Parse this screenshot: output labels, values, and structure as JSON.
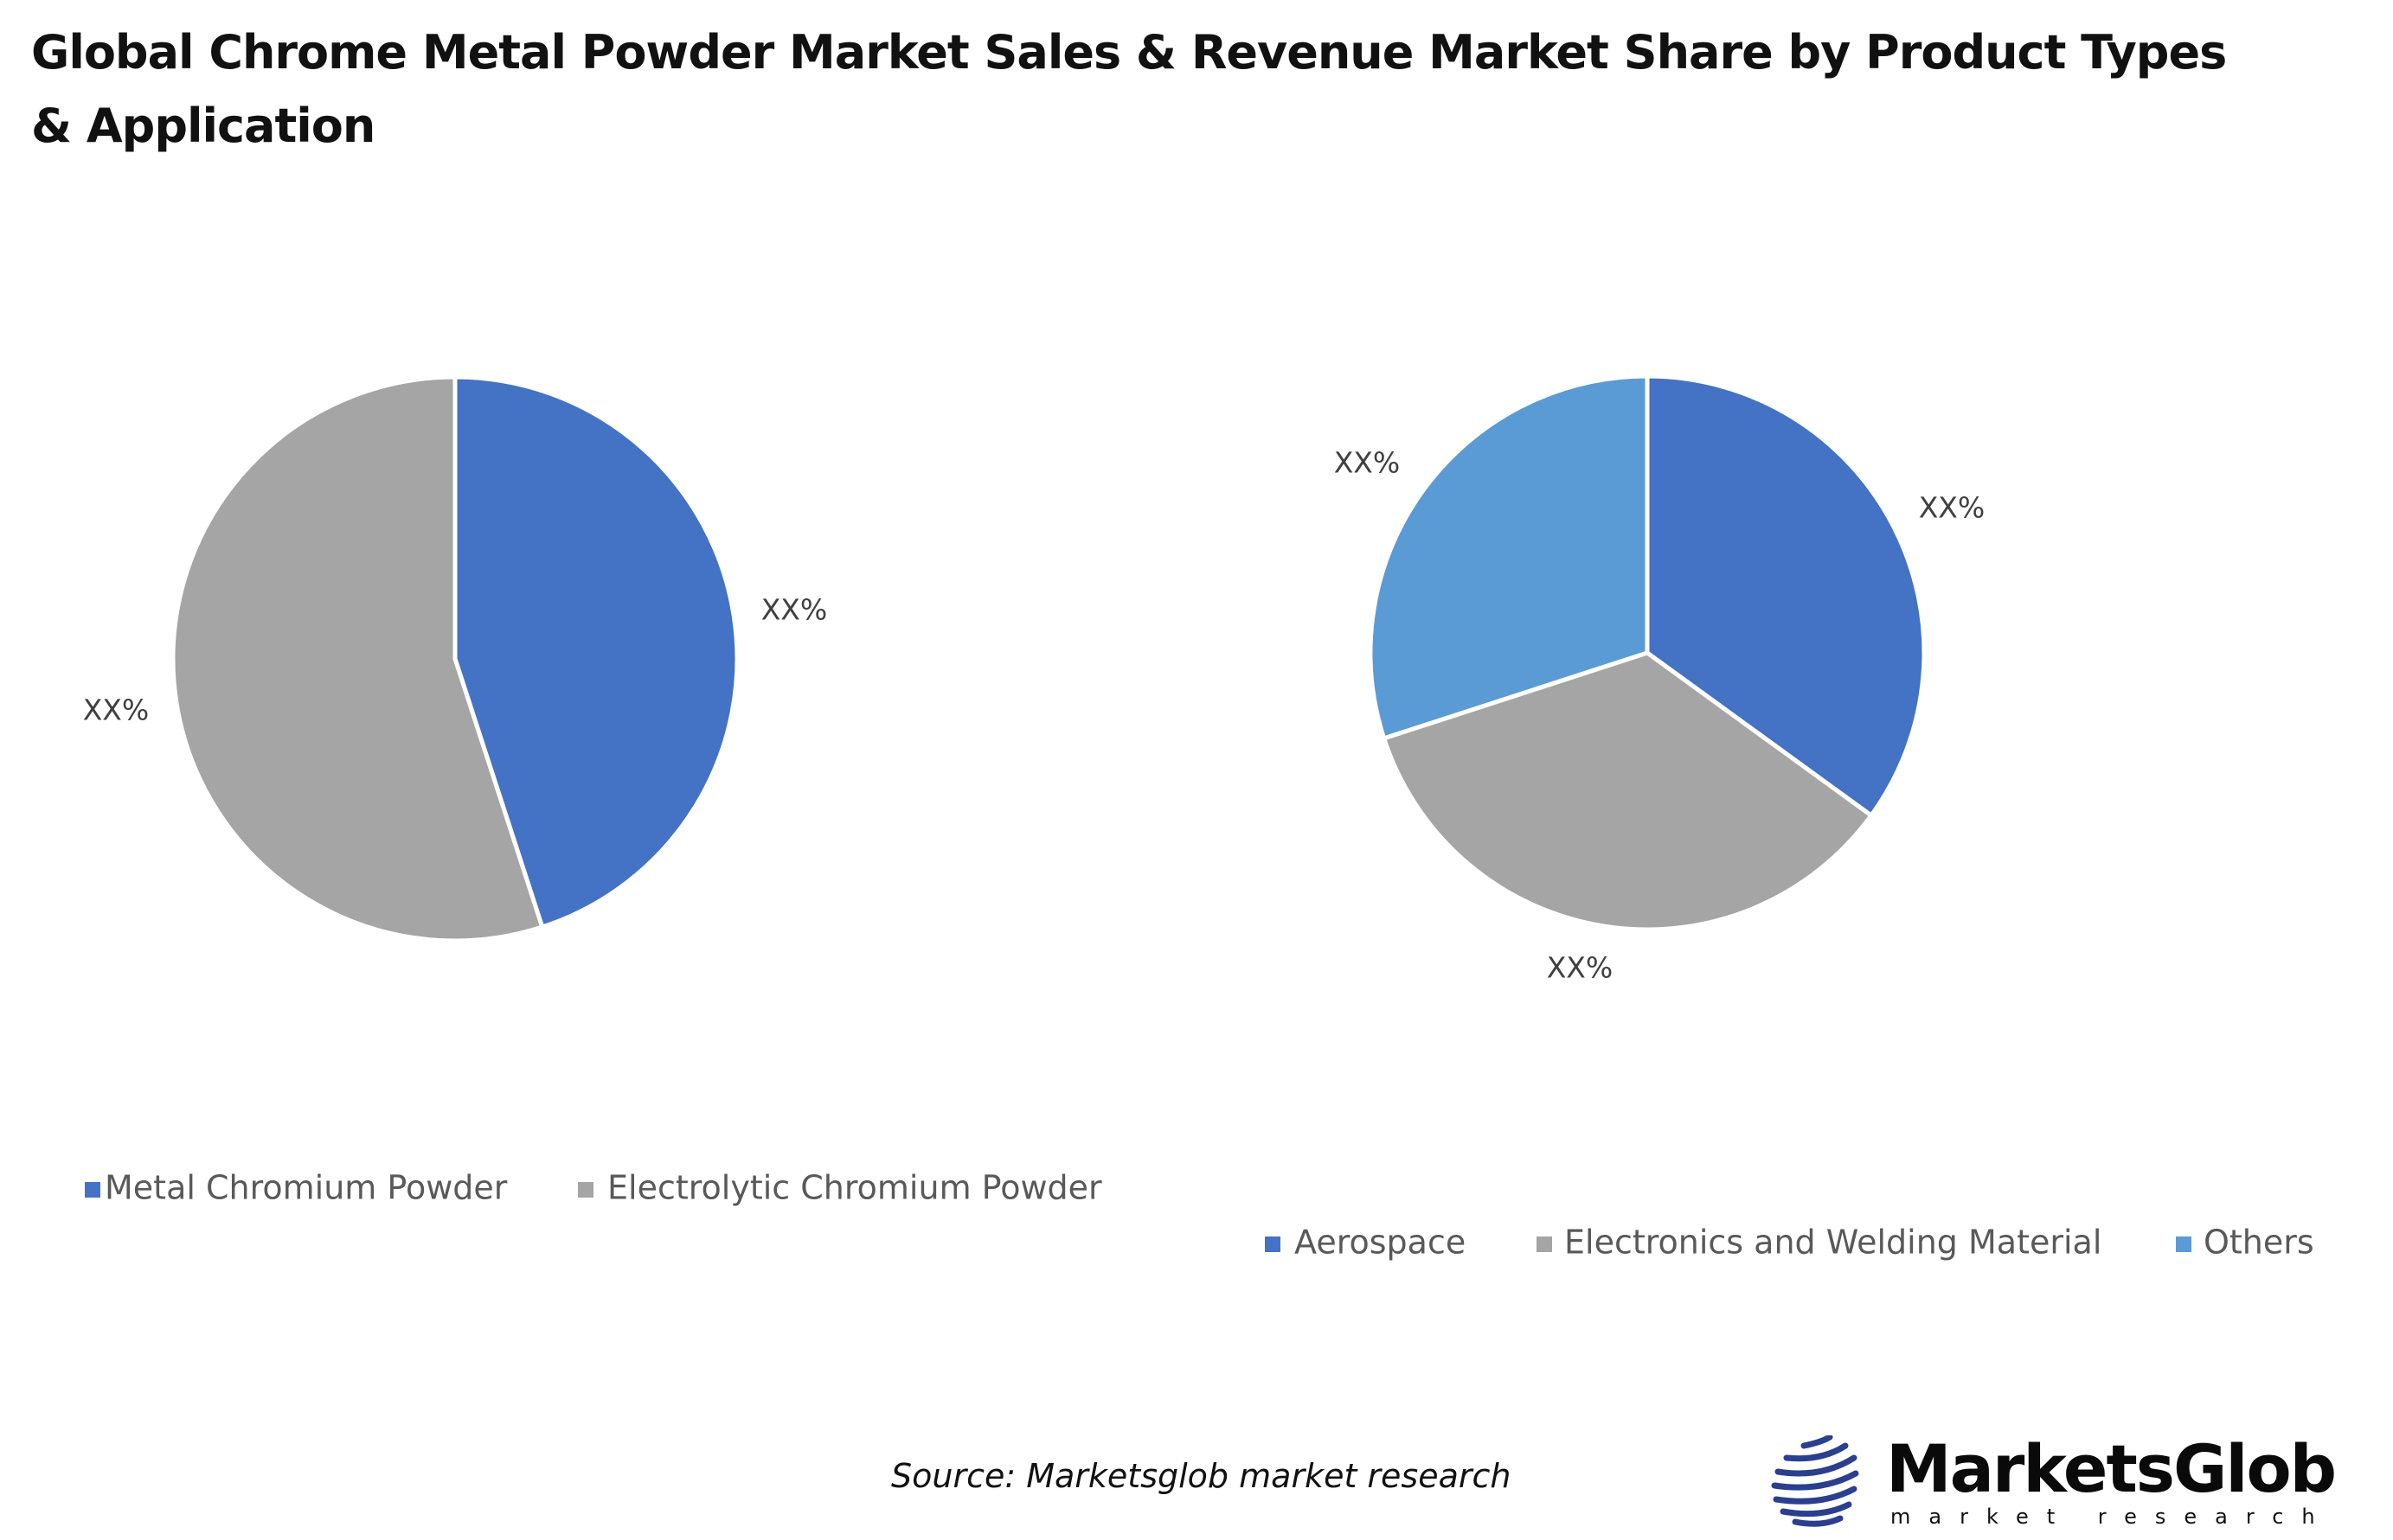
{
  "title": "Global Chrome Metal Powder Market Sales & Revenue Market Share by Product Types & Application",
  "chart_data": [
    {
      "type": "pie",
      "categories": [
        "Metal Chromium Powder",
        "Electrolytic Chromium Powder"
      ],
      "values": [
        45,
        55
      ],
      "data_labels": [
        "XX%",
        "XX%"
      ],
      "colors": [
        "#4472C4",
        "#A5A5A5"
      ],
      "legend": "bottom"
    },
    {
      "type": "pie",
      "categories": [
        "Aerospace",
        "Electronics and Welding Material",
        "Others"
      ],
      "values": [
        35,
        35,
        30
      ],
      "data_labels": [
        "XX%",
        "XX%",
        "XX%"
      ],
      "colors": [
        "#4472C4",
        "#A5A5A5",
        "#5B9BD5"
      ],
      "legend": "bottom"
    }
  ],
  "source": "Source: Marketsglob market research",
  "logo": {
    "name": "MarketsGlob",
    "tagline": "market research"
  }
}
